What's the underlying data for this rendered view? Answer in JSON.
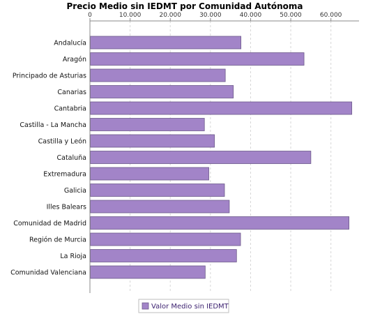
{
  "chart_data": {
    "type": "bar",
    "orientation": "horizontal",
    "title": "Precio Medio sin IEDMT por Comunidad Autónoma",
    "xlabel": "",
    "ylabel": "",
    "xlim": [
      0,
      67000
    ],
    "x_ticks": [
      0,
      10000,
      20000,
      30000,
      40000,
      50000,
      60000
    ],
    "x_tick_labels": [
      "0",
      "10.000",
      "20.000",
      "30.000",
      "40.000",
      "50.000",
      "60.000"
    ],
    "axis_position": "top",
    "grid": true,
    "legend_position": "bottom",
    "categories": [
      "Andalucía",
      "Aragón",
      "Principado de Asturias",
      "Canarias",
      "Cantabria",
      "Castilla - La Mancha",
      "Castilla y León",
      "Cataluña",
      "Extremadura",
      "Galicia",
      "Illes Balears",
      "Comunidad de Madrid",
      "Región de Murcia",
      "La Rioja",
      "Comunidad Valenciana"
    ],
    "series": [
      {
        "name": "Valor Medio sin IEDMT",
        "color": "#a284c8",
        "values": [
          37600,
          53300,
          33700,
          35700,
          65200,
          28500,
          31000,
          55000,
          29600,
          33500,
          34700,
          64500,
          37500,
          36500,
          28700
        ]
      }
    ]
  }
}
